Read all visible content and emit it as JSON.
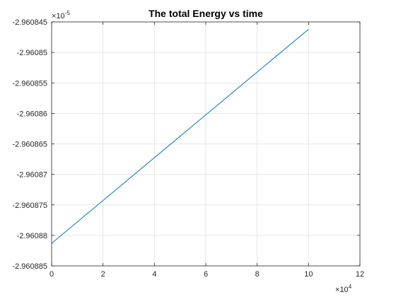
{
  "chart_data": {
    "type": "line",
    "title": "The total Energy vs time",
    "xlabel": "",
    "ylabel": "",
    "xlim": [
      0,
      120000
    ],
    "ylim": [
      -2.960885e-05,
      -2.960845e-05
    ],
    "x_ticks": [
      0,
      20000,
      40000,
      60000,
      80000,
      100000,
      120000
    ],
    "x_tick_labels": [
      "0",
      "2",
      "4",
      "6",
      "8",
      "10",
      "12"
    ],
    "x_multiplier_base": "10",
    "x_multiplier_exponent": "4",
    "y_ticks": [
      -2.960885e-05,
      -2.96088e-05,
      -2.960875e-05,
      -2.96087e-05,
      -2.960865e-05,
      -2.96086e-05,
      -2.960855e-05,
      -2.96085e-05,
      -2.960845e-05
    ],
    "y_tick_labels": [
      "-2.960885",
      "-2.96088",
      "-2.960875",
      "-2.96087",
      "-2.960865",
      "-2.96086",
      "-2.960855",
      "-2.96085",
      "-2.960845"
    ],
    "y_multiplier_base": "10",
    "y_multiplier_exponent": "-5",
    "grid": true,
    "series": [
      {
        "color": "#0072BD",
        "x": [
          0,
          100000
        ],
        "y": [
          -2.9608813e-05,
          -2.9608462e-05
        ]
      }
    ]
  }
}
